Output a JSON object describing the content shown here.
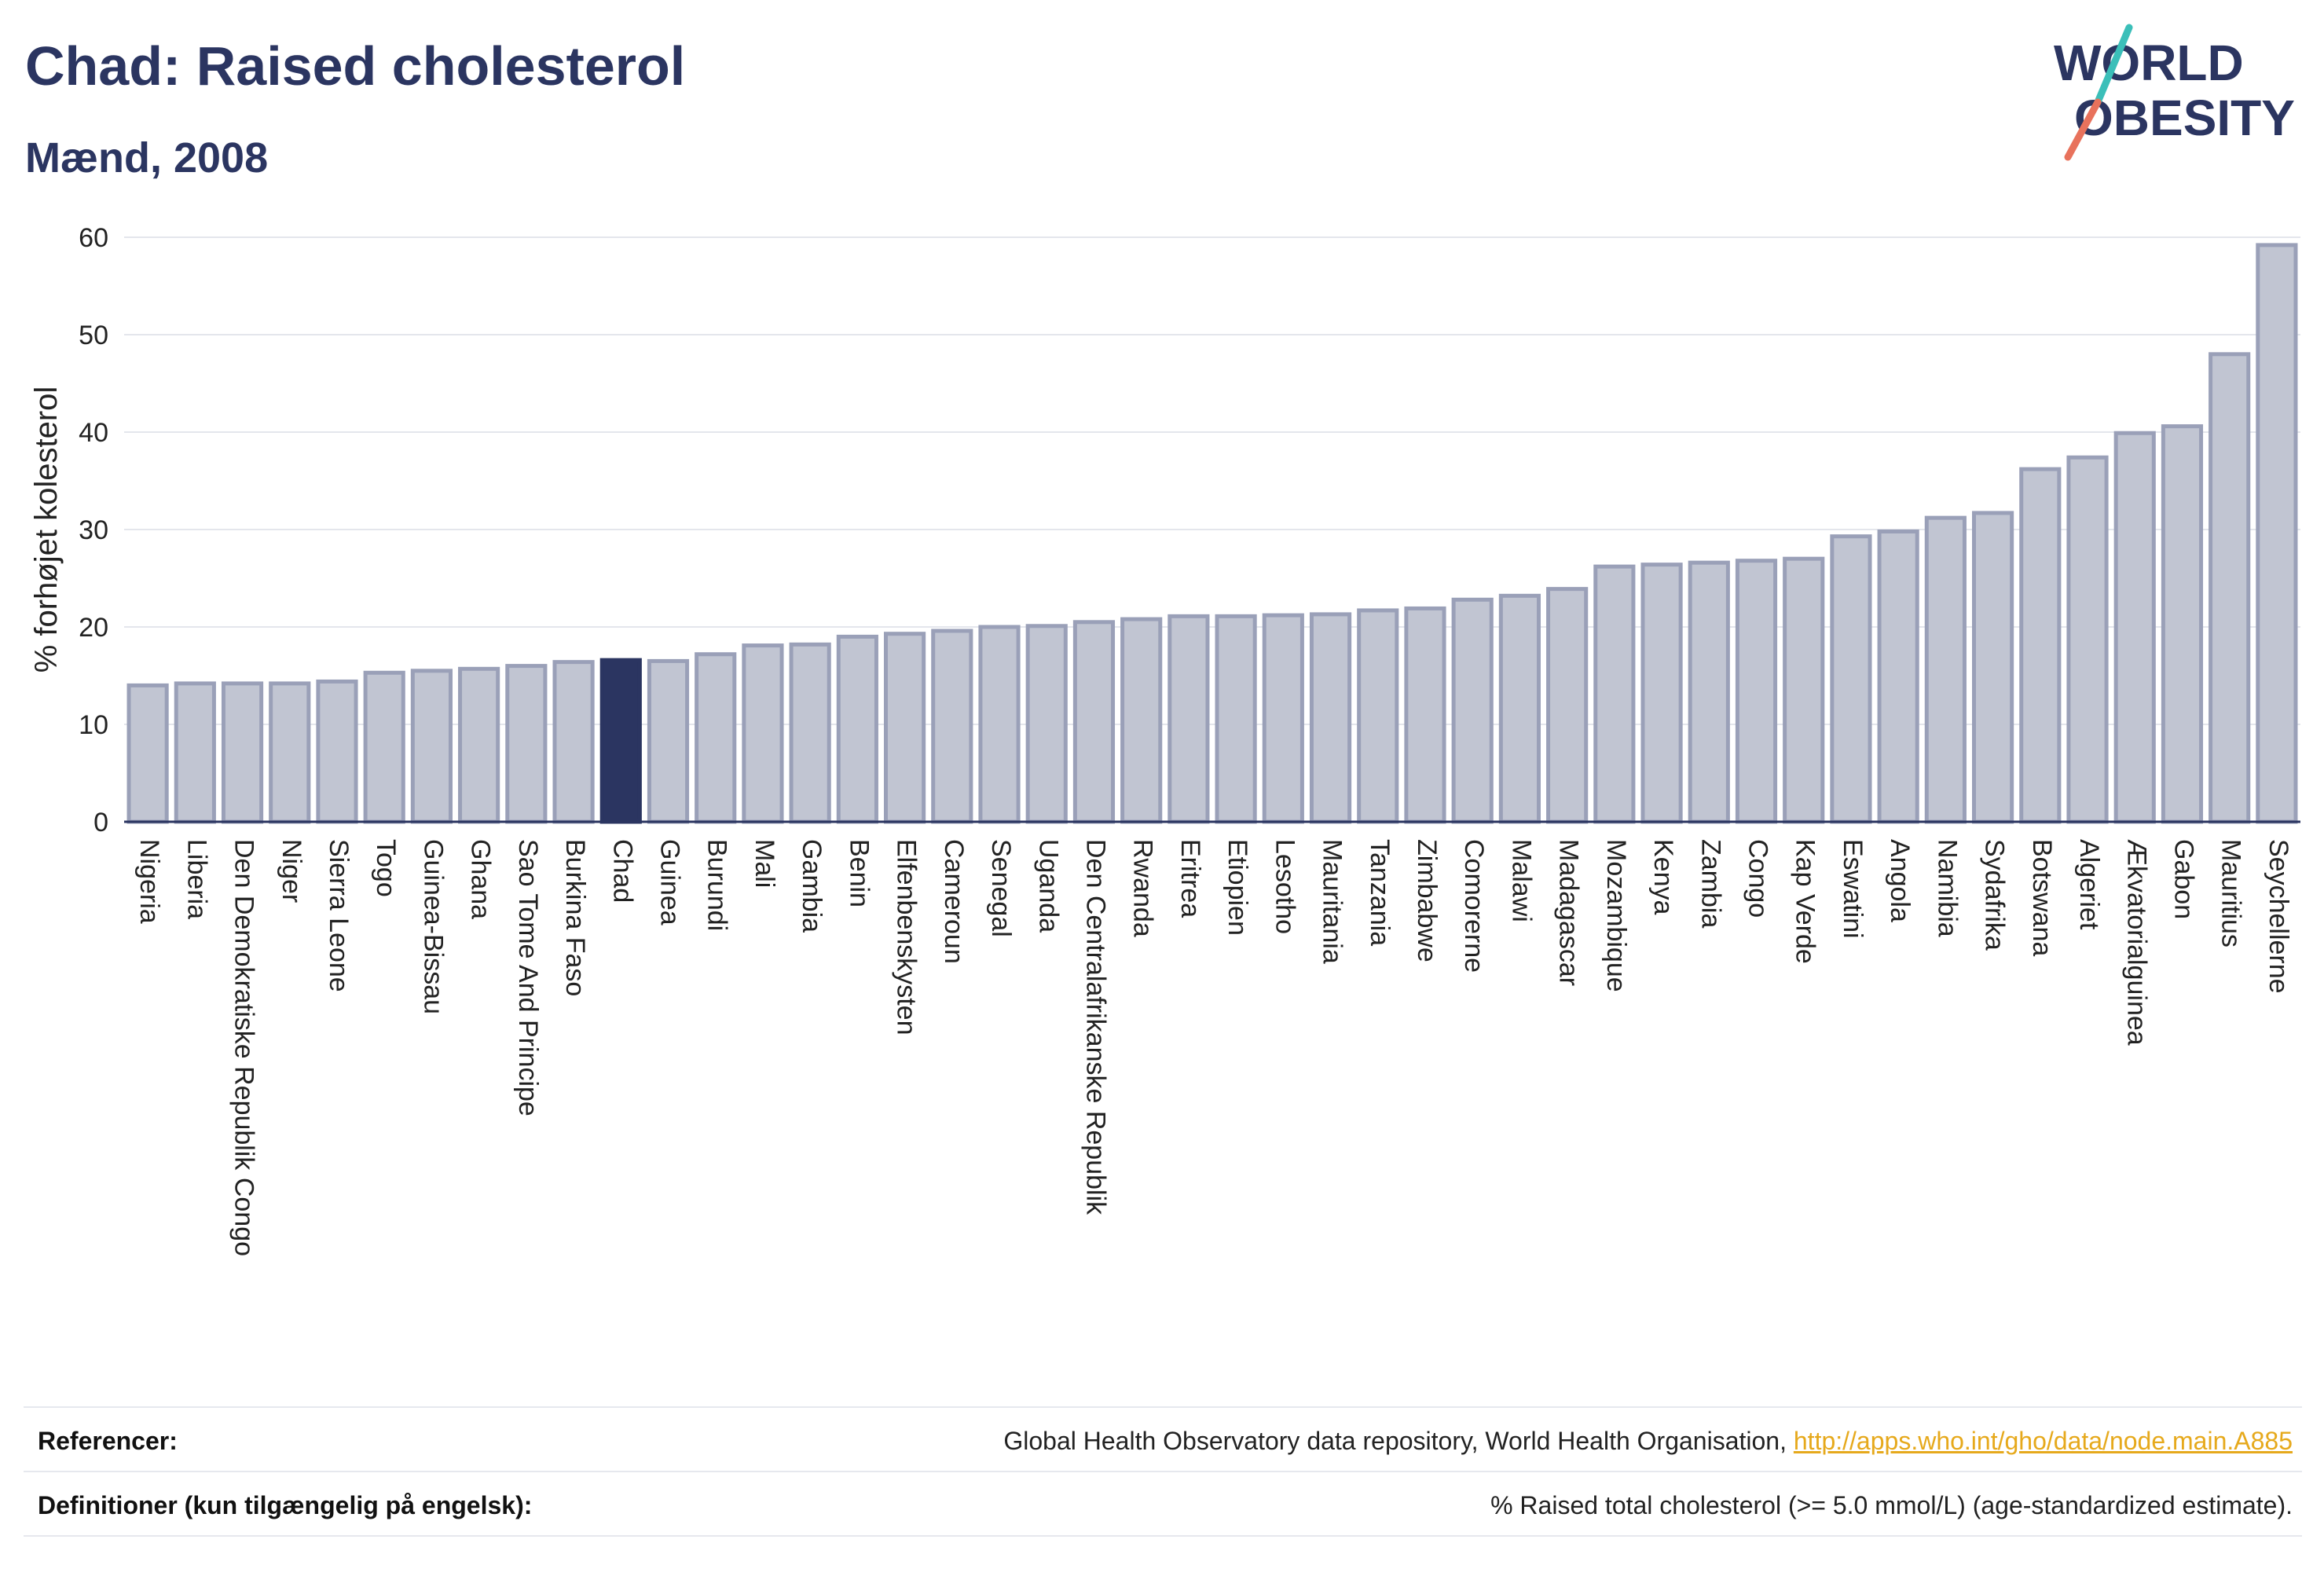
{
  "title": "Chad: Raised cholesterol",
  "subtitle": "Mænd, 2008",
  "logo": {
    "line1": "WORLD",
    "line2": "OBESITY"
  },
  "colors": {
    "bar": "#c1c5d2",
    "bar_stroke": "#9aa0b8",
    "highlight": "#2b3561",
    "text": "#2b3561",
    "grid": "#e4e6ec"
  },
  "chart_data": {
    "type": "bar",
    "ylabel": "% forhøjet kolesterol",
    "ylim": [
      0,
      60
    ],
    "yticks": [
      0,
      10,
      20,
      30,
      40,
      50,
      60
    ],
    "highlight": "Chad",
    "categories": [
      "Nigeria",
      "Liberia",
      "Den Demokratiske Republik Congo",
      "Niger",
      "Sierra Leone",
      "Togo",
      "Guinea-Bissau",
      "Ghana",
      "Sao Tome And Principe",
      "Burkina Faso",
      "Chad",
      "Guinea",
      "Burundi",
      "Mali",
      "Gambia",
      "Benin",
      "Elfenbenskysten",
      "Cameroun",
      "Senegal",
      "Uganda",
      "Den Centralafrikanske Republik",
      "Rwanda",
      "Eritrea",
      "Etiopien",
      "Lesotho",
      "Mauritania",
      "Tanzania",
      "Zimbabwe",
      "Comorerne",
      "Malawi",
      "Madagascar",
      "Mozambique",
      "Kenya",
      "Zambia",
      "Congo",
      "Kap Verde",
      "Eswatini",
      "Angola",
      "Namibia",
      "Sydafrika",
      "Botswana",
      "Algeriet",
      "Ækvatorialguinea",
      "Gabon",
      "Mauritius",
      "Seychellerne"
    ],
    "values": [
      14.0,
      14.2,
      14.2,
      14.2,
      14.4,
      15.3,
      15.5,
      15.7,
      16.0,
      16.4,
      16.6,
      16.5,
      17.2,
      18.1,
      18.2,
      19.0,
      19.3,
      19.6,
      20.0,
      20.1,
      20.5,
      20.8,
      21.1,
      21.1,
      21.2,
      21.3,
      21.7,
      21.9,
      22.8,
      23.2,
      23.9,
      26.2,
      26.4,
      26.6,
      26.8,
      27.0,
      29.3,
      29.8,
      31.2,
      31.7,
      36.2,
      37.4,
      39.9,
      40.6,
      48.0,
      59.2
    ]
  },
  "footer": {
    "references_label": "Referencer:",
    "references_text": "Global Health Observatory data repository, World Health Organisation, ",
    "references_link": "http://apps.who.int/gho/data/node.main.A885",
    "definitions_label": "Definitioner (kun tilgængelig på engelsk):",
    "definitions_text": "% Raised total cholesterol (>= 5.0 mmol/L) (age-standardized estimate)."
  }
}
